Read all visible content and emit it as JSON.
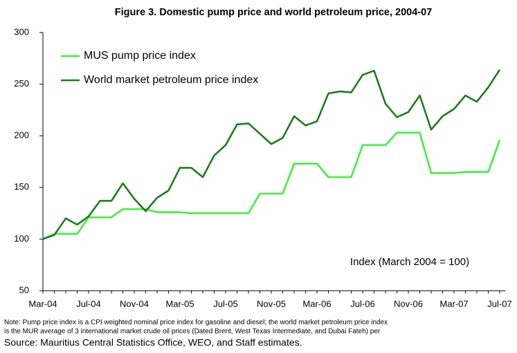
{
  "chart_data": {
    "type": "line",
    "title": "Figure 3. Domestic pump price and world petroleum price, 2004-07",
    "annotation": "Index (March 2004 = 100)",
    "note_lines": [
      "Note: Pump price index is a CPI weighted nominal price index for gasoline and diesel; the world market petroleum price index",
      "is the MUR average of 3 international market crude oil prices (Dated Brent, West Texas Intermediate, and Dubai Fateh) per"
    ],
    "source": "Source: Mauritius Central Statistics Office, WEO, and Staff estimates.",
    "categories": [
      "Mar-04",
      null,
      null,
      null,
      "Jul-04",
      null,
      null,
      null,
      "Nov-04",
      null,
      null,
      null,
      "Mar-05",
      null,
      null,
      null,
      "Jul-05",
      null,
      null,
      null,
      "Nov-05",
      null,
      null,
      null,
      "Mar-06",
      null,
      null,
      null,
      "Jul-06",
      null,
      null,
      null,
      "Nov-06",
      null,
      null,
      null,
      "Mar-07",
      null,
      null,
      null,
      "Jul-07"
    ],
    "series": [
      {
        "name": "MUS pump price index",
        "color": "#3ef03e",
        "values": [
          100,
          105,
          105,
          105,
          121,
          121,
          121,
          129,
          129,
          129,
          126,
          126,
          126,
          125,
          125,
          125,
          125,
          125,
          125,
          144,
          144,
          144,
          173,
          173,
          173,
          160,
          160,
          160,
          191,
          191,
          191,
          203,
          203,
          203,
          164,
          164,
          164,
          165,
          165,
          165,
          196
        ]
      },
      {
        "name": "World market petroleum price index",
        "color": "#1a7d1a",
        "values": [
          100,
          104,
          120,
          114,
          122,
          137,
          137,
          154,
          139,
          127,
          140,
          147,
          169,
          169,
          160,
          181,
          191,
          211,
          212,
          202,
          192,
          198,
          219,
          210,
          214,
          241,
          243,
          242,
          259,
          263,
          231,
          218,
          223,
          239,
          206,
          219,
          226,
          239,
          233,
          247,
          264
        ]
      }
    ],
    "ylim": [
      50,
      300
    ],
    "yticks": [
      50,
      100,
      150,
      200,
      250,
      300
    ]
  }
}
